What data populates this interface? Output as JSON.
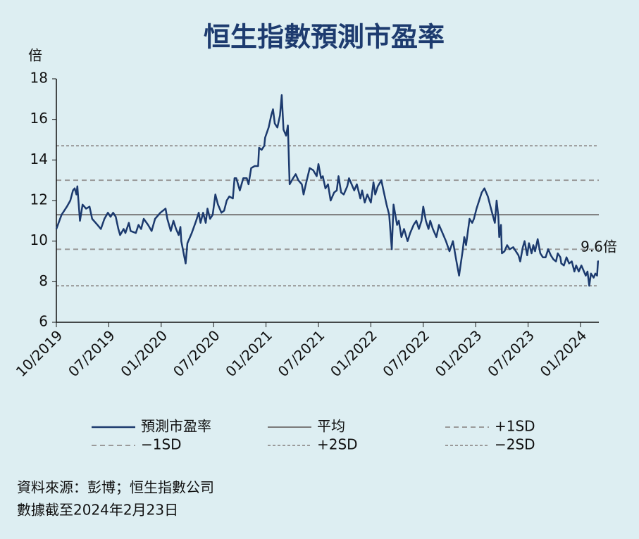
{
  "chart_data": {
    "type": "line",
    "title": "恒生指數預測市盈率",
    "y_label": "倍",
    "annotation": "9.6倍",
    "source": "資料來源：彭博；恒生指數公司",
    "note": "數據截至2024年2月23日",
    "xlim": [
      0,
      62.1
    ],
    "xticks": [
      {
        "value": 0,
        "label": "10/2019"
      },
      {
        "value": 6,
        "label": "07/2019"
      },
      {
        "value": 12,
        "label": "01/2020"
      },
      {
        "value": 18,
        "label": "07/2020"
      },
      {
        "value": 24,
        "label": "01/2021"
      },
      {
        "value": 30,
        "label": "07/2021"
      },
      {
        "value": 36,
        "label": "01/2022"
      },
      {
        "value": 42,
        "label": "07/2022"
      },
      {
        "value": 48,
        "label": "01/2023"
      },
      {
        "value": 54,
        "label": "07/2023"
      },
      {
        "value": 60,
        "label": "01/2024"
      }
    ],
    "ylim": [
      6,
      18
    ],
    "yticks": [
      6,
      8,
      10,
      12,
      14,
      16,
      18
    ],
    "x": [
      0,
      0.6,
      1.2,
      1.6,
      1.9,
      2.1,
      2.3,
      2.4,
      2.7,
      3.0,
      3.4,
      3.8,
      4.1,
      4.7,
      5.1,
      5.5,
      5.9,
      6.2,
      6.5,
      6.8,
      7.1,
      7.3,
      7.7,
      7.9,
      8.3,
      8.5,
      9.1,
      9.4,
      9.7,
      10.0,
      10.5,
      10.9,
      11.3,
      11.9,
      12.5,
      12.7,
      13.1,
      13.4,
      13.7,
      14.0,
      14.2,
      14.3,
      14.8,
      15.0,
      15.5,
      16.0,
      16.3,
      16.5,
      16.8,
      17.1,
      17.3,
      17.6,
      17.9,
      18.2,
      18.5,
      18.9,
      19.2,
      19.5,
      19.8,
      20.2,
      20.4,
      20.6,
      21.0,
      21.4,
      21.8,
      22.0,
      22.3,
      22.7,
      23.1,
      23.2,
      23.5,
      23.8,
      23.9,
      24.3,
      24.6,
      24.8,
      25.0,
      25.3,
      25.6,
      25.8,
      26.0,
      26.3,
      26.5,
      26.7,
      27.1,
      27.4,
      27.7,
      28.1,
      28.3,
      28.5,
      29.0,
      29.4,
      29.8,
      30.0,
      30.3,
      30.5,
      30.8,
      31.1,
      31.4,
      31.8,
      32.1,
      32.3,
      32.6,
      32.9,
      33.3,
      33.5,
      33.8,
      34.1,
      34.4,
      34.8,
      35.0,
      35.3,
      35.6,
      36.0,
      36.3,
      36.5,
      36.8,
      37.2,
      37.4,
      37.8,
      38.1,
      38.4,
      38.6,
      39.0,
      39.2,
      39.5,
      39.8,
      40.2,
      40.5,
      40.9,
      41.2,
      41.5,
      41.8,
      42.0,
      42.3,
      42.6,
      42.8,
      43.1,
      43.5,
      43.8,
      44.2,
      44.6,
      45.0,
      45.4,
      45.8,
      46.1,
      46.5,
      46.7,
      46.9,
      47.3,
      47.6,
      47.8,
      48.1,
      48.4,
      48.7,
      49.0,
      49.4,
      49.7,
      50.0,
      50.2,
      50.4,
      50.6,
      50.7,
      50.9,
      51.0,
      51.3,
      51.6,
      51.9,
      52.3,
      52.6,
      52.9,
      53.1,
      53.4,
      53.6,
      53.9,
      54.1,
      54.4,
      54.6,
      54.8,
      55.1,
      55.4,
      55.7,
      56.0,
      56.3,
      56.6,
      56.9,
      57.2,
      57.4,
      57.7,
      57.8,
      58.1,
      58.4,
      58.7,
      59.0,
      59.3,
      59.5,
      59.8,
      60.1,
      60.3,
      60.6,
      60.8,
      61.0,
      61.2,
      61.5,
      61.7,
      61.9,
      62.0,
      62.1
    ],
    "series": [
      {
        "name": "預測市盈率",
        "color": "#1c3a6e",
        "values": [
          10.6,
          11.3,
          11.7,
          12.0,
          12.5,
          12.6,
          12.3,
          12.7,
          11.0,
          11.8,
          11.6,
          11.7,
          11.1,
          10.8,
          10.6,
          11.1,
          11.4,
          11.2,
          11.4,
          11.2,
          10.6,
          10.3,
          10.6,
          10.4,
          10.9,
          10.5,
          10.4,
          10.8,
          10.6,
          11.1,
          10.8,
          10.5,
          11.1,
          11.4,
          11.6,
          11.1,
          10.5,
          11.0,
          10.6,
          10.3,
          10.7,
          10.0,
          8.9,
          9.9,
          10.4,
          11.0,
          11.4,
          10.9,
          11.4,
          10.9,
          11.6,
          11.1,
          11.3,
          12.3,
          11.8,
          11.4,
          11.5,
          12.0,
          12.2,
          12.1,
          13.1,
          13.1,
          12.5,
          13.1,
          13.1,
          12.8,
          13.6,
          13.7,
          13.7,
          14.6,
          14.5,
          14.7,
          15.1,
          15.6,
          16.2,
          16.5,
          15.8,
          15.6,
          16.2,
          17.2,
          15.5,
          15.2,
          15.7,
          12.8,
          13.1,
          13.3,
          13.0,
          12.8,
          12.3,
          12.7,
          13.6,
          13.5,
          13.2,
          13.8,
          13.1,
          13.2,
          12.6,
          12.8,
          12.0,
          12.4,
          12.5,
          13.2,
          12.4,
          12.3,
          12.7,
          13.1,
          12.8,
          12.5,
          12.8,
          12.1,
          12.5,
          11.9,
          12.3,
          11.9,
          12.9,
          12.3,
          12.7,
          13.0,
          12.6,
          11.8,
          11.3,
          9.6,
          11.8,
          10.8,
          11.0,
          10.2,
          10.6,
          10.0,
          10.4,
          10.8,
          11.0,
          10.6,
          11.0,
          11.7,
          11.0,
          10.6,
          11.0,
          10.6,
          10.2,
          10.8,
          10.4,
          10.0,
          9.5,
          10.0,
          9.0,
          8.3,
          9.5,
          10.2,
          9.8,
          11.1,
          10.9,
          11.1,
          11.6,
          12.0,
          12.4,
          12.6,
          12.2,
          11.7,
          11.2,
          10.9,
          12.0,
          11.2,
          10.2,
          10.8,
          9.4,
          9.5,
          9.8,
          9.6,
          9.7,
          9.5,
          9.3,
          9.0,
          9.7,
          10.0,
          9.3,
          9.9,
          9.4,
          9.8,
          9.5,
          10.1,
          9.4,
          9.2,
          9.2,
          9.6,
          9.3,
          9.1,
          9.0,
          9.4,
          9.2,
          8.9,
          8.8,
          9.2,
          8.9,
          9.0,
          8.5,
          8.8,
          8.5,
          8.8,
          8.6,
          8.3,
          8.5,
          7.8,
          8.4,
          8.2,
          8.4,
          8.3,
          9.0,
          9.0
        ]
      }
    ],
    "reference_lines": [
      {
        "name": "平均",
        "value": 11.3,
        "color": "#7a7a7a",
        "dash": "none"
      },
      {
        "name": "+1SD",
        "value": 13.0,
        "color": "#9a9a9a",
        "dash": "7 5"
      },
      {
        "name": "−1SD",
        "value": 9.6,
        "color": "#9a9a9a",
        "dash": "7 5"
      },
      {
        "name": "+2SD",
        "value": 14.7,
        "color": "#9a9a9a",
        "dash": "4 3"
      },
      {
        "name": "−2SD",
        "value": 7.8,
        "color": "#9a9a9a",
        "dash": "4 3"
      }
    ]
  }
}
